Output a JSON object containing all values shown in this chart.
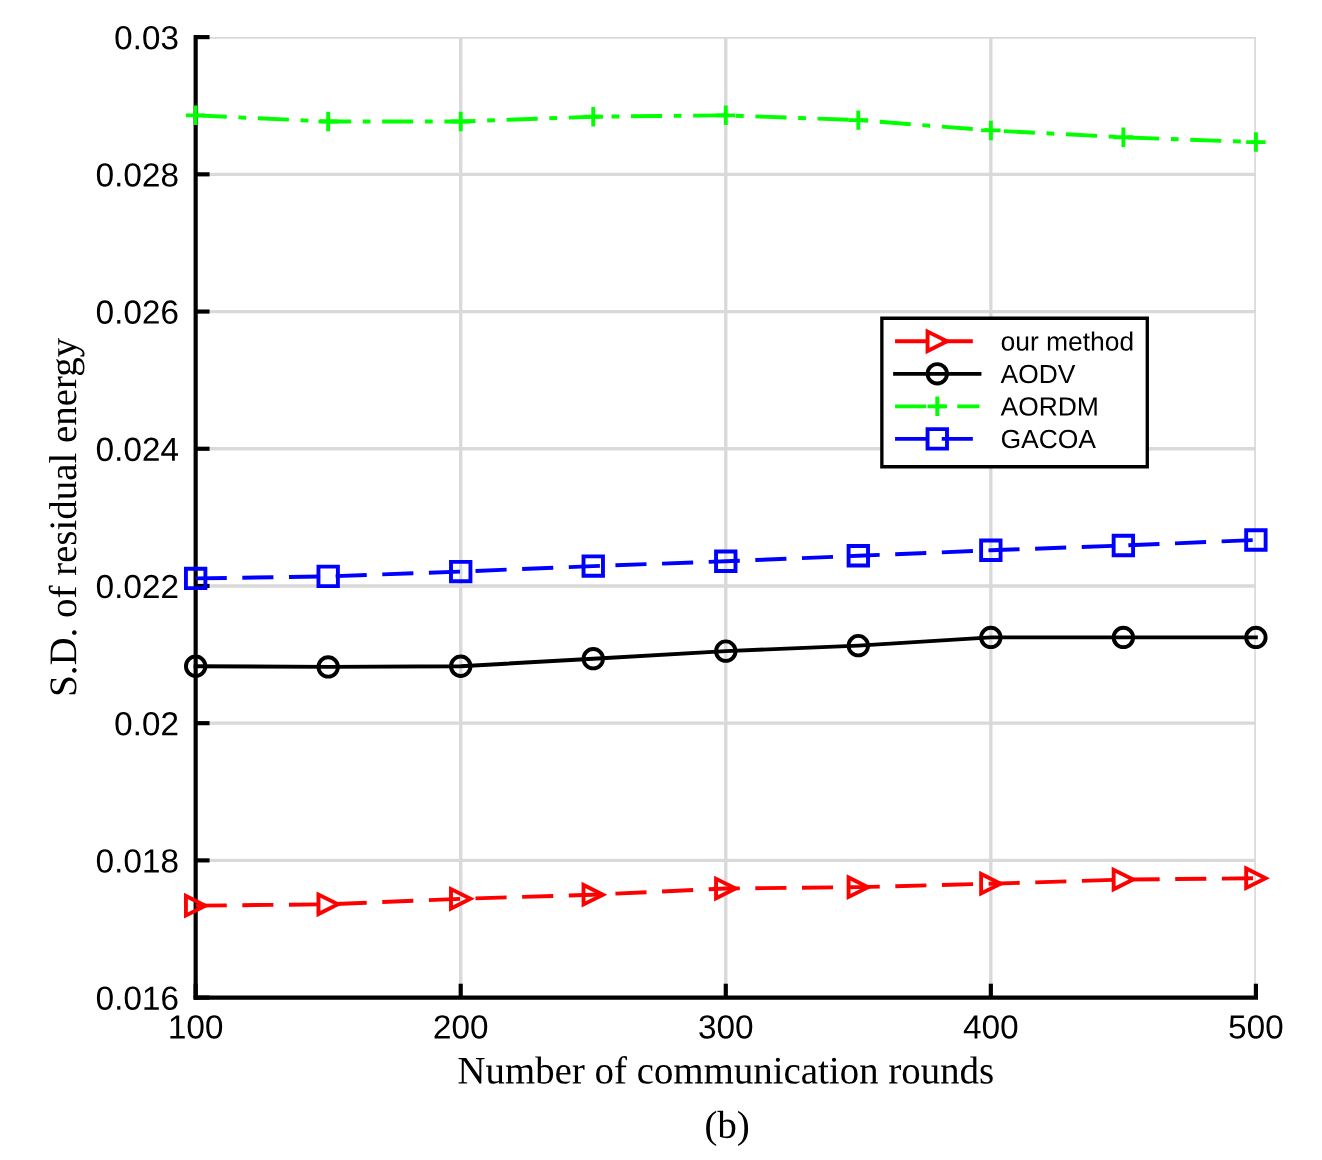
{
  "chart_data": {
    "type": "line",
    "xlabel": "Number of communication rounds",
    "ylabel": "S.D. of residual energy",
    "x": [
      100,
      150,
      200,
      250,
      300,
      350,
      400,
      450,
      500
    ],
    "series": [
      {
        "name": "our method",
        "color": "#ff0000",
        "marker": "triangle",
        "line_style": "dashed",
        "values": [
          0.01734,
          0.01736,
          0.01744,
          0.0175,
          0.01759,
          0.01761,
          0.01766,
          0.01772,
          0.01774
        ]
      },
      {
        "name": "AODV",
        "color": "#000000",
        "marker": "circle",
        "line_style": "solid",
        "values": [
          0.02083,
          0.02082,
          0.02083,
          0.02094,
          0.02105,
          0.02113,
          0.02125,
          0.02125,
          0.02125
        ]
      },
      {
        "name": "AORDM",
        "color": "#00ff00",
        "marker": "cross",
        "line_style": "dashdot",
        "values": [
          0.02886,
          0.02877,
          0.02877,
          0.02884,
          0.02886,
          0.02879,
          0.02864,
          0.02854,
          0.02847
        ]
      },
      {
        "name": "GACOA",
        "color": "#0000ff",
        "marker": "square",
        "line_style": "dashed",
        "values": [
          0.02211,
          0.02214,
          0.02221,
          0.02229,
          0.02236,
          0.02244,
          0.02252,
          0.02259,
          0.02267
        ]
      }
    ],
    "xlim": [
      100,
      500
    ],
    "xticks": [
      100,
      200,
      300,
      400,
      500
    ],
    "ylim": [
      0.016,
      0.03
    ],
    "yticks": [
      0.016,
      0.018,
      0.02,
      0.022,
      0.024,
      0.026,
      0.028,
      0.03
    ],
    "grid": true,
    "legend": "right",
    "annotations": [
      "(b)"
    ]
  }
}
